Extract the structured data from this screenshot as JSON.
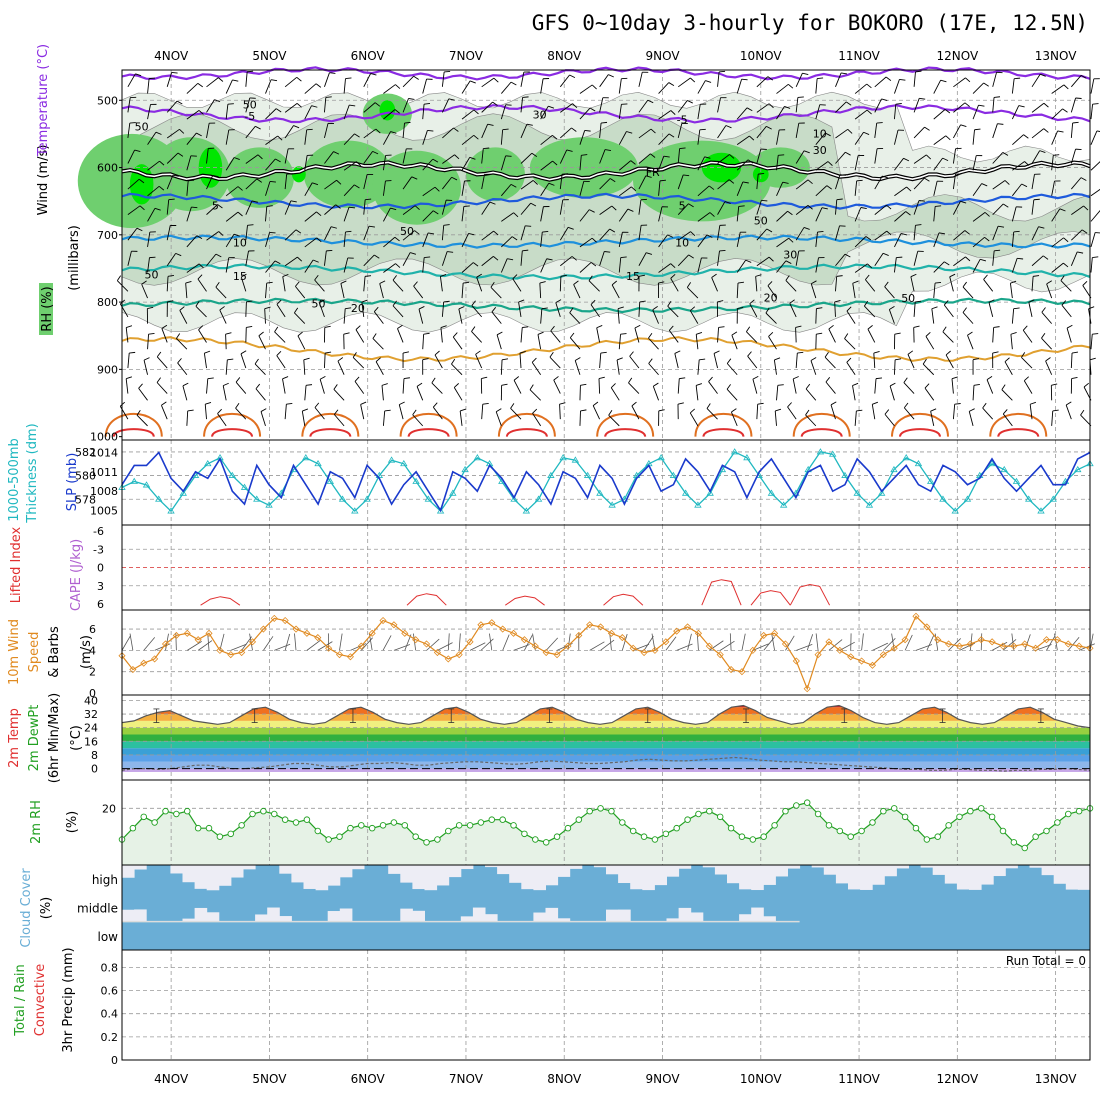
{
  "title": "GFS 0~10day 3-hourly for BOKORO (17E, 12.5N)",
  "colors": {
    "rh_dark": "#00e600",
    "rh_mid": "#6fcf6f",
    "rh_light": "#c8dcc8",
    "temp_neg": "#8a2be2",
    "temp_5": "#1e5adc",
    "temp_10": "#1e90dc",
    "temp_15": "#20b2aa",
    "temp_20": "#1aa58a",
    "temp_hot1": "#e0a030",
    "temp_hot2": "#e07020",
    "temp_hot3": "#e03030",
    "slp": "#1a3acc",
    "thickness": "#20b8c0",
    "lifted": "#e03030",
    "cape": "#b060d0",
    "wind": "#e08a20",
    "rh2m": "#22a022",
    "cloud": "#6aaed6",
    "cloud_bg": "#ededf5"
  },
  "chart_data": {
    "type": "meteogram",
    "x_dates": [
      "4NOV",
      "5NOV",
      "6NOV",
      "7NOV",
      "8NOV",
      "9NOV",
      "10NOV",
      "11NOV",
      "12NOV",
      "13NOV"
    ],
    "panels": [
      {
        "id": "upper_air",
        "labels": [
          "RH (%)",
          "Temperature (°C)",
          "Wind (m/s)",
          "(millibars)"
        ],
        "yticks": [
          500,
          600,
          700,
          800,
          900,
          1000
        ],
        "isotherm_labels": [
          "-5",
          "-5",
          "FR",
          "5",
          "5",
          "10",
          "10",
          "15",
          "15",
          "20",
          "20"
        ],
        "rh_labels": [
          "50",
          "50",
          "30",
          "10",
          "30",
          "50",
          "50",
          "50",
          "30",
          "50",
          "50"
        ]
      },
      {
        "id": "slp_thickness",
        "labels": [
          "1000-500mb",
          "Thickness (dm)",
          "SLP (mb)"
        ],
        "yticks_left": [
          578,
          580,
          582
        ],
        "yticks_right": [
          1005,
          1008,
          1011,
          1014
        ],
        "slp": [
          1009,
          1012,
          1012,
          1014,
          1010,
          1008,
          1011,
          1010,
          1013,
          1008,
          1006,
          1012,
          1009,
          1007,
          1012,
          1009,
          1006,
          1011,
          1010,
          1007,
          1012,
          1010,
          1006,
          1009,
          1011,
          1008,
          1005,
          1011,
          1010,
          1008,
          1012,
          1010,
          1007,
          1011,
          1009,
          1006,
          1011,
          1010,
          1007,
          1012,
          1010,
          1006,
          1010,
          1012,
          1008,
          1009,
          1013,
          1011,
          1008,
          1012,
          1011,
          1007,
          1011,
          1013,
          1010,
          1007,
          1011,
          1012,
          1008,
          1009,
          1013,
          1011,
          1008,
          1010,
          1012,
          1009,
          1008,
          1012,
          1011,
          1009,
          1010,
          1013,
          1010,
          1008,
          1010,
          1012,
          1009,
          1009,
          1013,
          1014
        ],
        "thickness": [
          579,
          579.5,
          579.2,
          578,
          577,
          578.5,
          580,
          581,
          581.5,
          580,
          579,
          578,
          577.5,
          578.5,
          580.5,
          581.5,
          581,
          579.5,
          578,
          577,
          578,
          580,
          581.3,
          581,
          579.5,
          578,
          577,
          578.5,
          580.5,
          581.5,
          581,
          579.5,
          578,
          577,
          578,
          580,
          581.5,
          581.3,
          580,
          578.5,
          577.5,
          578,
          580,
          581,
          581.5,
          580,
          578.5,
          577.5,
          578.5,
          580.5,
          582,
          581.5,
          580,
          578.5,
          577.5,
          578.5,
          580.5,
          582,
          581.8,
          580,
          578.5,
          577.5,
          578.5,
          580.5,
          581.5,
          581,
          579.5,
          578,
          577,
          578,
          580,
          581,
          580.5,
          579.5,
          578,
          577,
          578,
          579.5,
          580.5,
          581
        ]
      },
      {
        "id": "cape_li",
        "labels": [
          "Lifted Index",
          "CAPE (J/kg)"
        ],
        "yticks": [
          -6,
          -3,
          0,
          3,
          6
        ]
      },
      {
        "id": "wind10m",
        "labels": [
          "10m Wind",
          "Speed",
          "& Barbs",
          "(m/s)"
        ],
        "yticks": [
          0,
          2,
          4,
          6
        ],
        "speed": [
          3.5,
          2.2,
          2.8,
          3.2,
          4.6,
          5.4,
          5.6,
          5.0,
          5.6,
          4.0,
          3.6,
          3.8,
          4.8,
          6.0,
          7.0,
          6.8,
          6.0,
          5.6,
          5.2,
          4.2,
          3.6,
          3.4,
          4.4,
          5.6,
          6.8,
          6.4,
          5.6,
          5.0,
          4.6,
          3.8,
          3.2,
          3.6,
          4.8,
          6.4,
          6.6,
          6.0,
          5.6,
          5.0,
          4.4,
          3.8,
          3.6,
          4.4,
          5.4,
          6.4,
          6.2,
          5.6,
          5.2,
          4.2,
          3.8,
          4.0,
          4.8,
          5.8,
          6.2,
          5.6,
          4.4,
          3.6,
          2.2,
          2.0,
          4.0,
          5.4,
          5.6,
          4.6,
          3.0,
          0.4,
          3.6,
          4.8,
          4.0,
          3.4,
          3.0,
          2.6,
          3.6,
          4.2,
          5.0,
          7.2,
          6.2,
          5.0,
          4.6,
          4.4,
          4.6,
          5.0,
          4.8,
          4.4,
          4.4,
          4.6,
          4.2,
          5.0,
          5.0,
          4.6,
          4.4,
          4.2
        ]
      },
      {
        "id": "temp2m",
        "labels": [
          "2m Temp",
          "2m DewPt",
          "(6hr Min/Max)",
          "(°C)"
        ],
        "yticks": [
          0,
          8,
          16,
          24,
          32,
          40
        ],
        "temp": [
          27,
          28,
          31,
          33,
          34,
          31,
          28,
          27,
          26,
          27,
          31,
          35,
          36,
          33,
          29,
          27,
          26,
          27,
          31,
          35,
          36,
          33,
          29,
          27,
          26,
          27,
          31,
          35,
          36,
          33,
          29,
          27,
          26,
          27,
          31,
          35,
          36,
          33,
          29,
          27,
          26,
          27,
          31,
          35,
          36,
          33,
          29,
          27,
          26,
          27,
          32,
          36,
          37,
          34,
          30,
          28,
          26,
          27,
          32,
          36,
          37,
          34,
          30,
          27,
          26,
          27,
          31,
          35,
          36,
          33,
          29,
          27,
          26,
          27,
          31,
          35,
          36,
          33,
          29,
          27,
          25,
          24
        ],
        "dewpt": [
          -1,
          0,
          0,
          -0.5,
          0,
          1,
          2,
          2,
          1,
          0,
          0,
          0.5,
          1,
          2,
          3,
          3,
          2,
          1,
          1,
          2,
          3,
          3,
          3.5,
          3,
          2,
          2,
          3,
          3.5,
          4,
          4,
          3.5,
          3,
          2.5,
          3,
          4,
          4.5,
          4,
          3.5,
          3,
          3,
          3.5,
          4,
          5,
          5.5,
          5,
          4.5,
          4.5,
          5,
          5.5,
          6,
          6.5,
          6,
          5,
          4.5,
          4,
          4,
          3.5,
          3,
          2.5,
          2,
          1.5,
          1,
          0.5,
          0,
          -0.5,
          -0.5,
          -1,
          -1,
          -0.5,
          -0.5,
          -1,
          -1,
          -1.5,
          -1,
          -1,
          -0.5,
          -0.5,
          0,
          -0.5,
          -1
        ]
      },
      {
        "id": "rh2m",
        "labels": [
          "2m RH",
          "(%)"
        ],
        "yticks": [
          20
        ],
        "rh": [
          9,
          13,
          17,
          15,
          19,
          18,
          19,
          13,
          13,
          10,
          11,
          14,
          18,
          19,
          18,
          16,
          15,
          16,
          12,
          9,
          10,
          13,
          14,
          13,
          14,
          15,
          14,
          10,
          8,
          9,
          12,
          14,
          14,
          15,
          16,
          16,
          14,
          11,
          9,
          8,
          10,
          13,
          16,
          19,
          20,
          19,
          15,
          12,
          10,
          9,
          11,
          13,
          16,
          18,
          19,
          17,
          13,
          10,
          9,
          10,
          14,
          19,
          21,
          22,
          18,
          14,
          12,
          10,
          12,
          15,
          19,
          20,
          17,
          13,
          9,
          10,
          14,
          17,
          19,
          20,
          17,
          12,
          8,
          6,
          10,
          12,
          15,
          18,
          19,
          20
        ]
      },
      {
        "id": "cloud",
        "labels": [
          "Cloud Cover",
          "(%)"
        ],
        "row_labels": [
          "high",
          "middle",
          "low"
        ]
      },
      {
        "id": "precip",
        "labels": [
          "Total / Rain",
          "Convective",
          "3hr Precip (mm)"
        ],
        "yticks": [
          0,
          0.2,
          0.4,
          0.6,
          0.8
        ],
        "run_total": "Run Total = 0",
        "values": [
          0,
          0,
          0,
          0,
          0,
          0,
          0,
          0,
          0,
          0
        ]
      }
    ]
  }
}
